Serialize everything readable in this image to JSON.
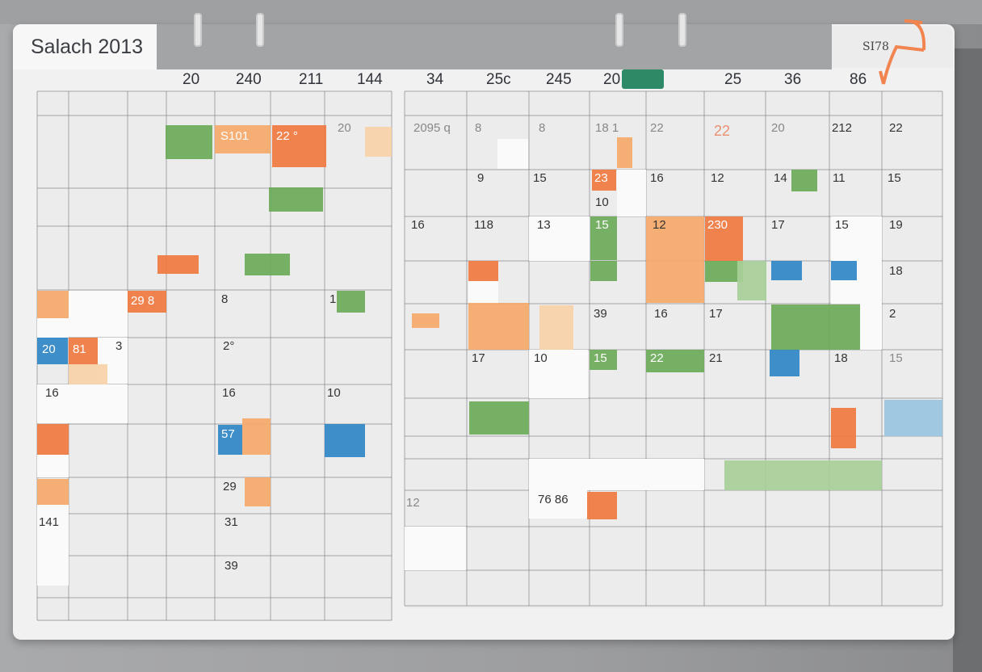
{
  "app": {
    "title": "Salach 2013",
    "corner_tag": "SI78"
  },
  "colors": {
    "orange": "#f07840",
    "light_orange": "#f5a868",
    "pale_orange": "#f7d0a8",
    "green": "#6aaa58",
    "light_green": "#a8cf98",
    "teal": "#2e8a66",
    "blue": "#2f86c6",
    "light_blue": "#9ac4e0",
    "grid": "#6a6c70",
    "background": "#a0a1a3"
  },
  "header": {
    "columns": [
      "20",
      "240",
      "211",
      "144",
      "34",
      "25c",
      "245",
      "20",
      "25",
      "36",
      "86"
    ],
    "tag_icon": "calendar-tag-icon"
  },
  "cells": [
    "20",
    "S101",
    "22 °",
    "29 8",
    "8",
    "1",
    "20",
    "81",
    "3",
    "2°",
    "16",
    "16",
    "10",
    "57",
    "29",
    "141",
    "31",
    "39",
    "2095 q",
    "8",
    "8",
    "18 1",
    "22",
    "22",
    "20",
    "212",
    "22",
    "9",
    "15",
    "23",
    "16",
    "12",
    "14",
    "11",
    "15",
    "10",
    "16",
    "118",
    "13",
    "15",
    "12",
    "230",
    "17",
    "15",
    "19",
    "18",
    "39",
    "16",
    "17",
    "2",
    "17",
    "10",
    "15",
    "22",
    "21",
    "18",
    "76 86",
    "15",
    "12"
  ]
}
